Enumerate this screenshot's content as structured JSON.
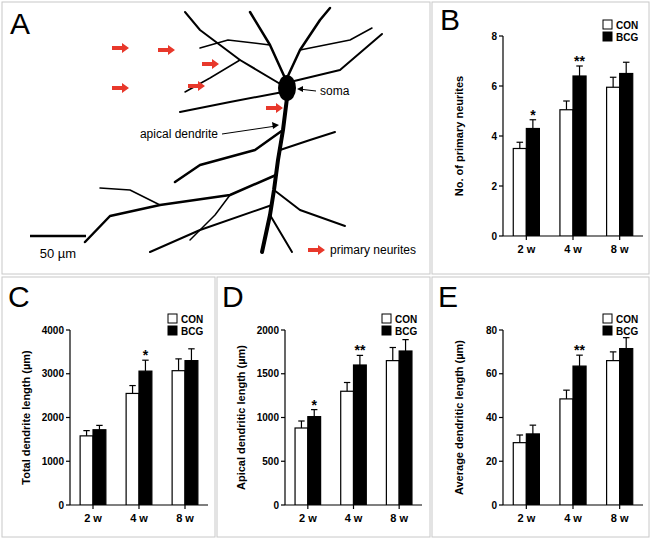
{
  "panel_a": {
    "label": "A",
    "soma": "soma",
    "apical_dendrite": "apical dendrite",
    "primary_neurites": "primary neurites",
    "scale_bar": "50 µm"
  },
  "chart_data": [
    {
      "type": "bar",
      "title": "B",
      "y_label": "No. of primary neurites",
      "categories": [
        "2 w",
        "4 w",
        "8 w"
      ],
      "series": [
        {
          "name": "CON",
          "color": "#ffffff",
          "values": [
            3.5,
            5.05,
            5.95
          ],
          "errors": [
            0.25,
            0.35,
            0.4
          ]
        },
        {
          "name": "BCG",
          "color": "#000000",
          "values": [
            4.3,
            6.4,
            6.5
          ],
          "errors": [
            0.35,
            0.4,
            0.45
          ]
        }
      ],
      "ylim": [
        0,
        8
      ],
      "yticks": [
        0,
        2,
        4,
        6,
        8
      ],
      "grid": false,
      "legend": "top-right",
      "annotations": [
        {
          "text": "*",
          "category": "2 w"
        },
        {
          "text": "**",
          "category": "4 w"
        }
      ]
    },
    {
      "type": "bar",
      "title": "C",
      "y_label": "Total dendrite length (µm)",
      "categories": [
        "2 w",
        "4 w",
        "8 w"
      ],
      "series": [
        {
          "name": "CON",
          "color": "#ffffff",
          "values": [
            1580,
            2550,
            3070
          ],
          "errors": [
            120,
            180,
            270
          ]
        },
        {
          "name": "BCG",
          "color": "#000000",
          "values": [
            1720,
            3060,
            3300
          ],
          "errors": [
            100,
            250,
            270
          ]
        }
      ],
      "ylim": [
        0,
        4000
      ],
      "yticks": [
        0,
        1000,
        2000,
        3000,
        4000
      ],
      "grid": false,
      "legend": "top-right",
      "annotations": [
        {
          "text": "*",
          "category": "4 w"
        }
      ]
    },
    {
      "type": "bar",
      "title": "D",
      "y_label": "Apical dendritic length (µm)",
      "categories": [
        "2 w",
        "4 w",
        "8 w"
      ],
      "series": [
        {
          "name": "CON",
          "color": "#ffffff",
          "values": [
            880,
            1300,
            1650
          ],
          "errors": [
            80,
            100,
            150
          ]
        },
        {
          "name": "BCG",
          "color": "#000000",
          "values": [
            1010,
            1600,
            1760
          ],
          "errors": [
            80,
            110,
            130
          ]
        }
      ],
      "ylim": [
        0,
        2000
      ],
      "yticks": [
        0,
        500,
        1000,
        1500,
        2000
      ],
      "grid": false,
      "legend": "top-right",
      "annotations": [
        {
          "text": "*",
          "category": "2 w"
        },
        {
          "text": "**",
          "category": "4 w"
        }
      ]
    },
    {
      "type": "bar",
      "title": "E",
      "y_label": "Average dendritic length (µm)",
      "categories": [
        "2 w",
        "4 w",
        "8 w"
      ],
      "series": [
        {
          "name": "CON",
          "color": "#ffffff",
          "values": [
            28.5,
            48.5,
            66
          ],
          "errors": [
            3.5,
            4,
            4
          ]
        },
        {
          "name": "BCG",
          "color": "#000000",
          "values": [
            32.5,
            63.5,
            71.5
          ],
          "errors": [
            4,
            5,
            5
          ]
        }
      ],
      "ylim": [
        0,
        80
      ],
      "yticks": [
        0,
        20,
        40,
        60,
        80
      ],
      "grid": false,
      "legend": "top-right",
      "annotations": [
        {
          "text": "**",
          "category": "4 w"
        }
      ]
    }
  ]
}
